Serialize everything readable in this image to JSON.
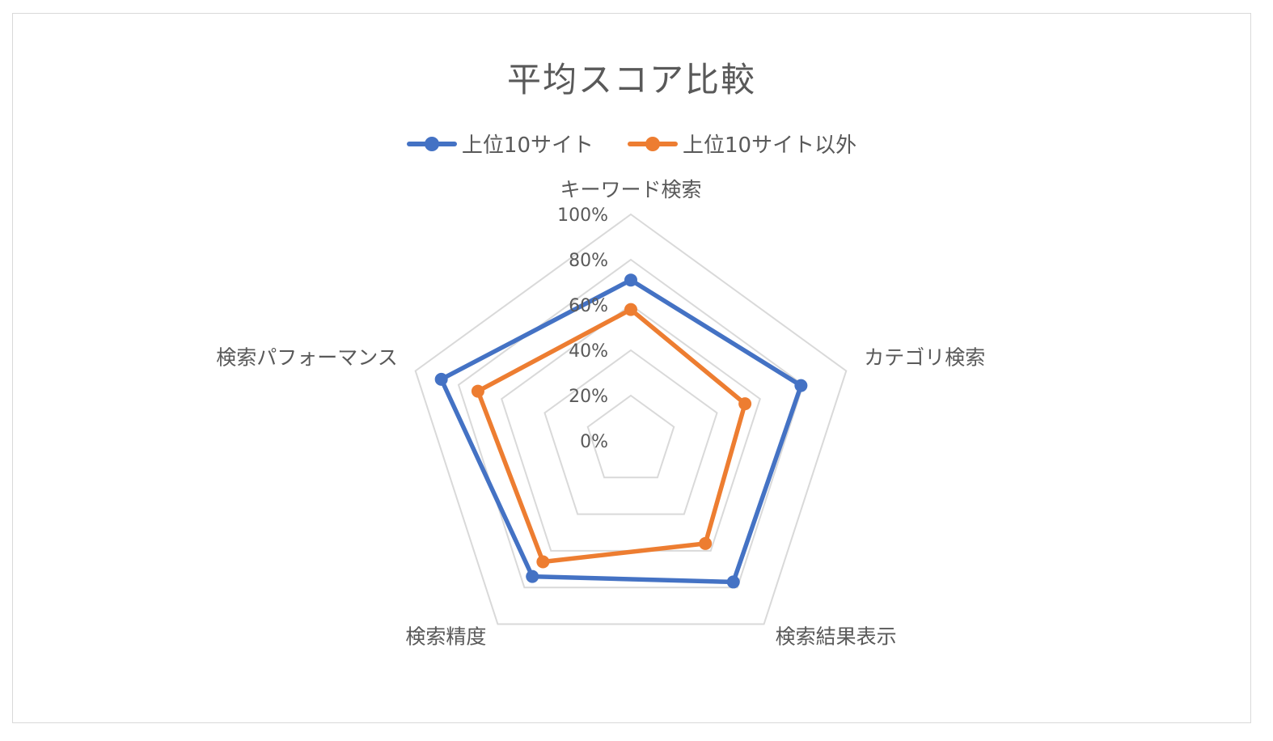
{
  "chart_data": {
    "type": "radar",
    "title": "平均スコア比較",
    "categories": [
      "キーワード検索",
      "カテゴリ検索",
      "検索結果表示",
      "検索精度",
      "検索パフォーマンス"
    ],
    "r_ticks": [
      "0%",
      "20%",
      "40%",
      "60%",
      "80%",
      "100%"
    ],
    "r_values": [
      0,
      0.2,
      0.4,
      0.6,
      0.8,
      1.0
    ],
    "rlim": [
      0,
      1
    ],
    "grid": true,
    "legend_position": "top",
    "series": [
      {
        "name": "上位10サイト",
        "color": "#4472C4",
        "values": [
          0.71,
          0.79,
          0.77,
          0.74,
          0.88
        ]
      },
      {
        "name": "上位10サイト以外",
        "color": "#ED7D31",
        "values": [
          0.58,
          0.53,
          0.56,
          0.66,
          0.71
        ]
      }
    ]
  }
}
